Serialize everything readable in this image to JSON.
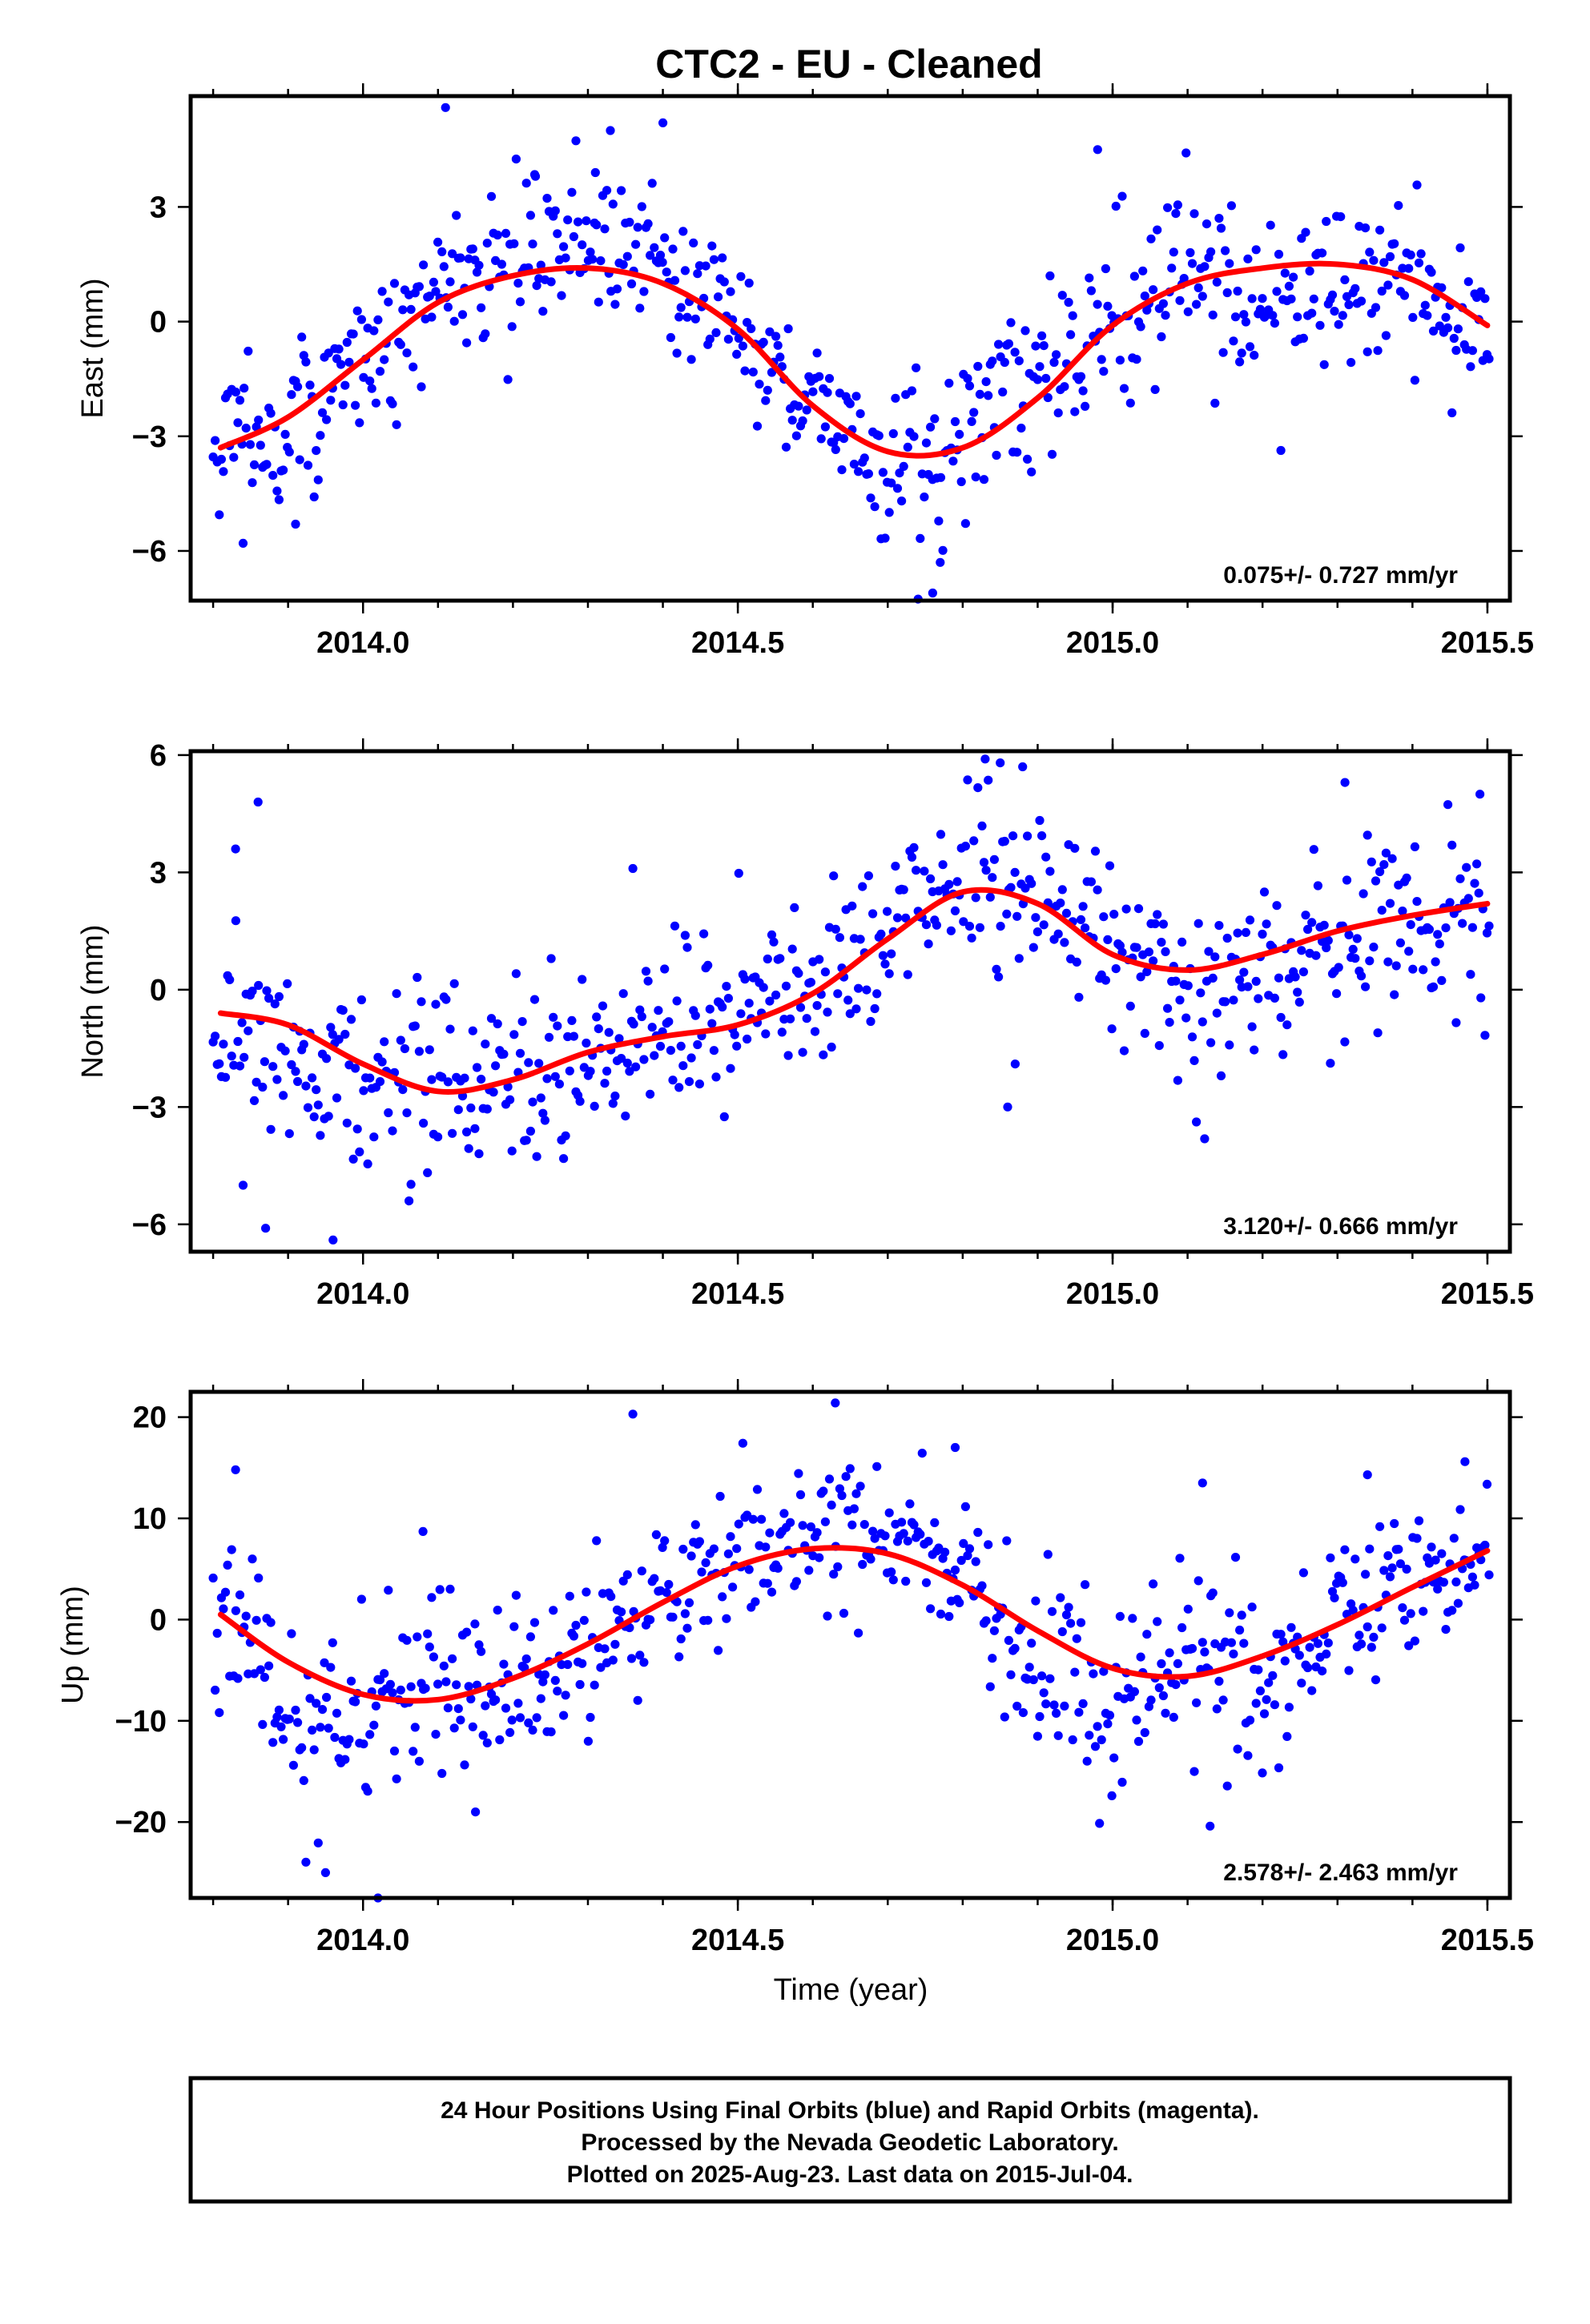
{
  "chart_data": {
    "title": "CTC2  - EU - Cleaned",
    "xlabel": "Time (year)",
    "xlim": [
      2013.77,
      2015.53
    ],
    "xticks": [
      "2014.0",
      "2014.5",
      "2015.0",
      "2015.5"
    ],
    "colors": {
      "points": "#0000ff",
      "fit": "#ff0000",
      "frame": "#000000"
    },
    "panels": [
      {
        "type": "scatter",
        "ylabel": "East (mm)",
        "ylim": [
          -7.3,
          5.9
        ],
        "yticks": [
          "3",
          "0",
          "−3",
          "−6"
        ],
        "rate_text": "0.075+/- 0.727 mm/yr",
        "fit_curve": {
          "x": [
            2013.81,
            2013.9,
            2014.0,
            2014.1,
            2014.2,
            2014.3,
            2014.4,
            2014.5,
            2014.6,
            2014.7,
            2014.8,
            2014.9,
            2015.0,
            2015.1,
            2015.2,
            2015.3,
            2015.4,
            2015.5
          ],
          "y": [
            -3.3,
            -2.5,
            -1.0,
            0.5,
            1.2,
            1.4,
            1.0,
            -0.2,
            -2.2,
            -3.4,
            -3.3,
            -2.0,
            -0.1,
            1.0,
            1.4,
            1.5,
            1.1,
            -0.1
          ]
        },
        "trend_anchors": {
          "x": [
            2013.81,
            2013.9,
            2014.0,
            2014.1,
            2014.2,
            2014.3,
            2014.4,
            2014.5,
            2014.6,
            2014.7,
            2014.8,
            2014.9,
            2015.0,
            2015.1,
            2015.2,
            2015.3,
            2015.4,
            2015.5
          ],
          "y": [
            -3.3,
            -2.6,
            -1.3,
            0.8,
            1.5,
            2.3,
            1.9,
            -0.4,
            -2.0,
            -4.1,
            -3.2,
            -1.1,
            0.0,
            1.4,
            0.5,
            0.6,
            0.9,
            -0.3
          ]
        },
        "scatter_spread": 1.05,
        "extra_points": [
          [
            2014.11,
            5.6
          ],
          [
            2014.33,
            5.0
          ],
          [
            2014.4,
            5.2
          ],
          [
            2014.98,
            4.5
          ],
          [
            2014.76,
            -7.1
          ],
          [
            2014.77,
            -6.3
          ],
          [
            2013.84,
            -5.8
          ],
          [
            2013.91,
            -5.3
          ],
          [
            2014.23,
            3.8
          ],
          [
            2014.31,
            3.9
          ]
        ]
      },
      {
        "type": "scatter",
        "ylabel": "North (mm)",
        "ylim": [
          -6.7,
          6.1
        ],
        "yticks": [
          "6",
          "3",
          "0",
          "−3",
          "−6"
        ],
        "rate_text": "3.120+/- 0.666 mm/yr",
        "fit_curve": {
          "x": [
            2013.81,
            2013.9,
            2014.0,
            2014.1,
            2014.2,
            2014.3,
            2014.4,
            2014.5,
            2014.6,
            2014.7,
            2014.8,
            2014.9,
            2015.0,
            2015.1,
            2015.2,
            2015.3,
            2015.4,
            2015.5
          ],
          "y": [
            -0.6,
            -0.9,
            -1.9,
            -2.6,
            -2.3,
            -1.6,
            -1.2,
            -0.9,
            -0.1,
            1.3,
            2.5,
            2.2,
            0.9,
            0.5,
            0.9,
            1.5,
            1.9,
            2.2
          ]
        },
        "trend_anchors": {
          "x": [
            2013.81,
            2013.9,
            2014.0,
            2014.1,
            2014.2,
            2014.3,
            2014.4,
            2014.5,
            2014.6,
            2014.7,
            2014.8,
            2014.9,
            2015.0,
            2015.1,
            2015.2,
            2015.3,
            2015.4,
            2015.5
          ],
          "y": [
            -0.8,
            -1.4,
            -2.3,
            -2.5,
            -2.6,
            -1.8,
            -1.0,
            -0.6,
            0.0,
            1.6,
            3.0,
            2.6,
            1.2,
            -0.3,
            0.6,
            1.0,
            1.4,
            2.4
          ]
        },
        "scatter_spread": 1.15,
        "extra_points": [
          [
            2013.86,
            4.8
          ],
          [
            2013.83,
            3.6
          ],
          [
            2014.36,
            3.1
          ],
          [
            2014.83,
            5.9
          ],
          [
            2014.85,
            5.8
          ],
          [
            2014.88,
            5.7
          ],
          [
            2015.31,
            5.3
          ],
          [
            2015.49,
            5.0
          ],
          [
            2013.87,
            -6.1
          ],
          [
            2013.96,
            -6.4
          ],
          [
            2014.86,
            -3.0
          ],
          [
            2014.87,
            -1.9
          ],
          [
            2013.84,
            -5.0
          ]
        ]
      },
      {
        "type": "scatter",
        "ylabel": "Up (mm)",
        "ylim": [
          -27.5,
          22.5
        ],
        "yticks": [
          "20",
          "10",
          "0",
          "−10",
          "−20"
        ],
        "rate_text": "2.578+/- 2.463 mm/yr",
        "fit_curve": {
          "x": [
            2013.81,
            2013.9,
            2014.0,
            2014.1,
            2014.2,
            2014.3,
            2014.4,
            2014.5,
            2014.6,
            2014.7,
            2014.8,
            2014.9,
            2015.0,
            2015.1,
            2015.2,
            2015.3,
            2015.4,
            2015.5
          ],
          "y": [
            0.5,
            -4.2,
            -7.4,
            -7.9,
            -5.8,
            -2.4,
            1.7,
            5.3,
            7.0,
            6.5,
            3.4,
            -1.1,
            -4.8,
            -5.6,
            -3.6,
            -0.5,
            3.2,
            6.8
          ]
        },
        "trend_anchors": {
          "x": [
            2013.81,
            2013.9,
            2014.0,
            2014.1,
            2014.2,
            2014.3,
            2014.4,
            2014.5,
            2014.6,
            2014.7,
            2014.8,
            2014.9,
            2015.0,
            2015.1,
            2015.2,
            2015.3,
            2015.4,
            2015.5
          ],
          "y": [
            3.0,
            -9.0,
            -11.0,
            -6.0,
            -8.0,
            -3.0,
            2.0,
            8.0,
            9.0,
            7.0,
            5.0,
            -5.0,
            -8.0,
            -4.0,
            -6.0,
            0.0,
            5.0,
            6.0
          ]
        },
        "scatter_spread": 4.2,
        "extra_points": [
          [
            2014.36,
            20.3
          ],
          [
            2014.63,
            21.4
          ],
          [
            2014.08,
            8.7
          ],
          [
            2014.02,
            -27.5
          ],
          [
            2013.95,
            -25.0
          ],
          [
            2014.15,
            -19.0
          ],
          [
            2015.13,
            -20.4
          ],
          [
            2014.79,
            17.0
          ],
          [
            2013.83,
            14.8
          ],
          [
            2015.47,
            15.6
          ],
          [
            2015.12,
            13.5
          ],
          [
            2015.34,
            14.3
          ]
        ]
      }
    ]
  },
  "caption": {
    "line1": "24 Hour Positions Using Final Orbits (blue) and Rapid Orbits (magenta).",
    "line2": "Processed by the Nevada Geodetic Laboratory.",
    "line3": "Plotted on 2025-Aug-23. Last data on 2015-Jul-04."
  }
}
